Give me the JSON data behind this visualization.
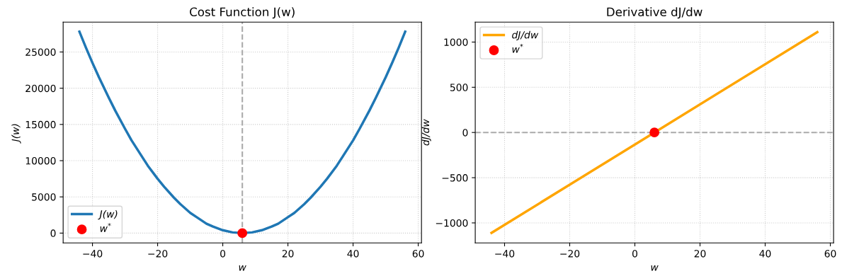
{
  "chart_data": [
    {
      "type": "line",
      "title": "Cost Function J(w)",
      "xlabel": "w",
      "ylabel": "J(w)",
      "series": [
        {
          "name": "J(w)",
          "color": "#1f77b4",
          "x": [
            -44,
            -42,
            -40,
            -38,
            -35,
            -33,
            -30,
            -28,
            -25,
            -23,
            -20,
            -18,
            -15,
            -13,
            -10,
            -8,
            -5,
            -3,
            0,
            3,
            6,
            9,
            12,
            15,
            17,
            20,
            22,
            25,
            27,
            30,
            32,
            35,
            37,
            40,
            42,
            45,
            47,
            50,
            52,
            54,
            56
          ],
          "values": [
            27800,
            25600,
            23500,
            21500,
            18700,
            16900,
            14400,
            12800,
            10700,
            9300,
            7500,
            6400,
            4900,
            4000,
            2800,
            2200,
            1300,
            900,
            400,
            100,
            0,
            100,
            400,
            900,
            1300,
            2200,
            2800,
            4000,
            4900,
            6400,
            7500,
            9300,
            10700,
            12800,
            14400,
            16900,
            18700,
            21500,
            23500,
            25600,
            27800
          ]
        },
        {
          "name": "w$^{*}$",
          "color": "#ff0000",
          "type": "scatter",
          "marker": "circle",
          "x": [
            6
          ],
          "values": [
            0
          ]
        }
      ],
      "xlim": [
        -49,
        61
      ],
      "xticks": [
        -40,
        -20,
        0,
        20,
        40,
        60
      ],
      "ylim": [
        -1350,
        29130
      ],
      "yticks": [
        0,
        5000,
        10000,
        15000,
        20000,
        25000
      ],
      "ref_lines": [
        {
          "axis": "x",
          "value": 6,
          "color": "#aaaaaa",
          "line_style": "dashed"
        }
      ],
      "grid": true,
      "legend": "bottom left"
    },
    {
      "type": "line",
      "title": "Derivative dJ/dw",
      "xlabel": "w",
      "ylabel": "dJ/dw",
      "series": [
        {
          "name": "dJ/dw",
          "color": "#ffa500",
          "x": [
            -44,
            6,
            56
          ],
          "values": [
            -1110,
            0,
            1110
          ]
        },
        {
          "name": "w$^{*}$",
          "color": "#ff0000",
          "type": "scatter",
          "marker": "circle",
          "x": [
            6
          ],
          "values": [
            0
          ]
        }
      ],
      "xlim": [
        -49,
        61
      ],
      "xticks": [
        -40,
        -20,
        0,
        20,
        40,
        60
      ],
      "ylim": [
        -1221,
        1221
      ],
      "yticks": [
        -1000,
        -500,
        0,
        500,
        1000
      ],
      "ref_lines": [
        {
          "axis": "y",
          "value": 0,
          "color": "#aaaaaa",
          "line_style": "dashed"
        }
      ],
      "grid": true,
      "legend": "top left"
    }
  ]
}
